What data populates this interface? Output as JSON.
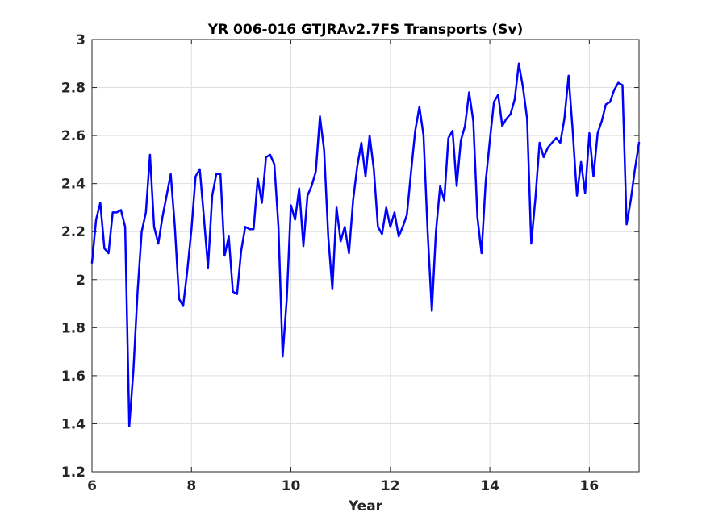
{
  "chart_data": {
    "type": "line",
    "title": "YR 006-016 GTJRAv2.7FS Transports (Sv)",
    "xlabel": "Year",
    "ylabel": "",
    "xlim": [
      6,
      17
    ],
    "ylim": [
      1.2,
      3.0
    ],
    "xticks": [
      6,
      8,
      10,
      12,
      14,
      16
    ],
    "xtick_labels": [
      "6",
      "8",
      "10",
      "12",
      "14",
      "16"
    ],
    "yticks": [
      1.2,
      1.4,
      1.6,
      1.8,
      2.0,
      2.2,
      2.4,
      2.6,
      2.8,
      3.0
    ],
    "ytick_labels": [
      "1.2",
      "1.4",
      "1.6",
      "1.8",
      "2",
      "2.2",
      "2.4",
      "2.6",
      "2.8",
      "3"
    ],
    "grid": true,
    "series": [
      {
        "color": "#0000ff",
        "x": [
          6.0,
          6.083,
          6.167,
          6.25,
          6.333,
          6.417,
          6.5,
          6.583,
          6.667,
          6.75,
          6.833,
          6.917,
          7.0,
          7.083,
          7.167,
          7.25,
          7.333,
          7.417,
          7.5,
          7.583,
          7.667,
          7.75,
          7.833,
          7.917,
          8.0,
          8.083,
          8.167,
          8.25,
          8.333,
          8.417,
          8.5,
          8.583,
          8.667,
          8.75,
          8.833,
          8.917,
          9.0,
          9.083,
          9.167,
          9.25,
          9.333,
          9.417,
          9.5,
          9.583,
          9.667,
          9.75,
          9.833,
          9.917,
          10.0,
          10.083,
          10.167,
          10.25,
          10.333,
          10.417,
          10.5,
          10.583,
          10.667,
          10.75,
          10.833,
          10.917,
          11.0,
          11.083,
          11.167,
          11.25,
          11.333,
          11.417,
          11.5,
          11.583,
          11.667,
          11.75,
          11.833,
          11.917,
          12.0,
          12.083,
          12.167,
          12.25,
          12.333,
          12.417,
          12.5,
          12.583,
          12.667,
          12.75,
          12.833,
          12.917,
          13.0,
          13.083,
          13.167,
          13.25,
          13.333,
          13.417,
          13.5,
          13.583,
          13.667,
          13.75,
          13.833,
          13.917,
          14.0,
          14.083,
          14.167,
          14.25,
          14.333,
          14.417,
          14.5,
          14.583,
          14.667,
          14.75,
          14.833,
          14.917,
          15.0,
          15.083,
          15.167,
          15.25,
          15.333,
          15.417,
          15.5,
          15.583,
          15.667,
          15.75,
          15.833,
          15.917,
          16.0,
          16.083,
          16.167,
          16.25,
          16.333,
          16.417,
          16.5,
          16.583,
          16.667,
          16.75,
          16.833,
          16.917,
          17.0
        ],
        "y": [
          2.07,
          2.25,
          2.32,
          2.13,
          2.11,
          2.28,
          2.28,
          2.29,
          2.22,
          1.39,
          1.62,
          1.95,
          2.2,
          2.28,
          2.52,
          2.22,
          2.15,
          2.26,
          2.35,
          2.44,
          2.22,
          1.92,
          1.89,
          2.04,
          2.21,
          2.43,
          2.46,
          2.26,
          2.05,
          2.35,
          2.44,
          2.44,
          2.1,
          2.18,
          1.95,
          1.94,
          2.12,
          2.22,
          2.21,
          2.21,
          2.42,
          2.32,
          2.51,
          2.52,
          2.48,
          2.22,
          1.68,
          1.92,
          2.31,
          2.25,
          2.38,
          2.14,
          2.35,
          2.39,
          2.45,
          2.68,
          2.54,
          2.18,
          1.96,
          2.3,
          2.16,
          2.22,
          2.11,
          2.33,
          2.47,
          2.57,
          2.43,
          2.6,
          2.46,
          2.22,
          2.19,
          2.3,
          2.22,
          2.28,
          2.18,
          2.22,
          2.27,
          2.45,
          2.62,
          2.72,
          2.6,
          2.2,
          1.87,
          2.2,
          2.39,
          2.33,
          2.59,
          2.62,
          2.39,
          2.58,
          2.64,
          2.78,
          2.66,
          2.26,
          2.11,
          2.41,
          2.58,
          2.74,
          2.77,
          2.64,
          2.67,
          2.69,
          2.75,
          2.9,
          2.8,
          2.67,
          2.15,
          2.34,
          2.57,
          2.51,
          2.55,
          2.57,
          2.59,
          2.57,
          2.67,
          2.85,
          2.62,
          2.35,
          2.49,
          2.36,
          2.61,
          2.43,
          2.61,
          2.66,
          2.73,
          2.74,
          2.79,
          2.82,
          2.81,
          2.23,
          2.33,
          2.46,
          2.57
        ]
      }
    ]
  }
}
